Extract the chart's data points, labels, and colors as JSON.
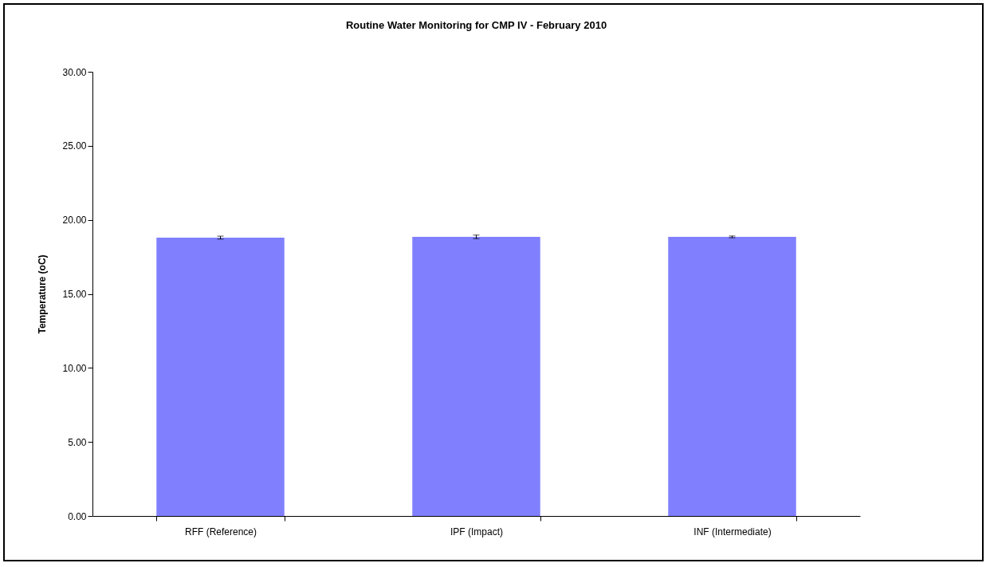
{
  "chart_data": {
    "type": "bar",
    "title": "Routine Water Monitoring for CMP IV - February 2010",
    "ylabel": "Temperature (oC)",
    "categories": [
      "RFF (Reference)",
      "IPF (Impact)",
      "INF (Intermediate)"
    ],
    "values": [
      18.8,
      18.85,
      18.85
    ],
    "errors": [
      0.1,
      0.12,
      0.06
    ],
    "color": "#8080ff",
    "ylim": [
      0,
      30
    ],
    "yticks": [
      {
        "value": 0,
        "label": "0.00"
      },
      {
        "value": 5,
        "label": "5.00"
      },
      {
        "value": 10,
        "label": "10.00"
      },
      {
        "value": 15,
        "label": "15.00"
      },
      {
        "value": 20,
        "label": "20.00"
      },
      {
        "value": 25,
        "label": "25.00"
      },
      {
        "value": 30,
        "label": "30.00"
      }
    ],
    "grid": false
  }
}
